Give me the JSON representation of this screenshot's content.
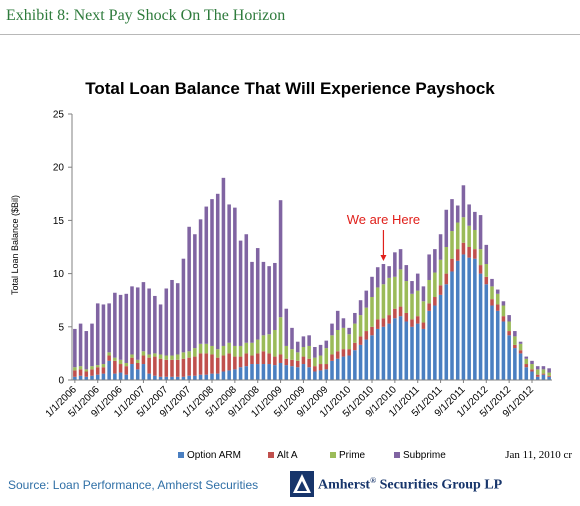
{
  "header": {
    "exhibit_label": "Exhibit 8:",
    "exhibit_title": "Next Pay Shock On The Horizon"
  },
  "footer": {
    "source": "Source:  Loan Performance, Amherst Securities",
    "firm_name": "Amherst",
    "firm_mark": "®",
    "firm_suffix": "Securities Group LP",
    "date_note": "Jan 11, 2010 cr"
  },
  "annotation": {
    "text": "We are Here",
    "color": "#e0201b"
  },
  "chart_data": {
    "type": "bar",
    "stacked": true,
    "title": "Total Loan Balance That Will Experience Payshock",
    "xlabel": "",
    "ylabel": "Total Loan Balance  ($Bil)",
    "ylim": [
      0,
      25
    ],
    "yticks": [
      0,
      5,
      10,
      15,
      20,
      25
    ],
    "grid": false,
    "legend_position": "bottom",
    "categories": [
      "1/1/2006",
      "2/1/2006",
      "3/1/2006",
      "4/1/2006",
      "5/1/2006",
      "6/1/2006",
      "7/1/2006",
      "8/1/2006",
      "9/1/2006",
      "10/1/2006",
      "11/1/2006",
      "12/1/2006",
      "1/1/2007",
      "2/1/2007",
      "3/1/2007",
      "4/1/2007",
      "5/1/2007",
      "6/1/2007",
      "7/1/2007",
      "8/1/2007",
      "9/1/2007",
      "10/1/2007",
      "11/1/2007",
      "12/1/2007",
      "1/1/2008",
      "2/1/2008",
      "3/1/2008",
      "4/1/2008",
      "5/1/2008",
      "6/1/2008",
      "7/1/2008",
      "8/1/2008",
      "9/1/2008",
      "10/1/2008",
      "11/1/2008",
      "12/1/2008",
      "1/1/2009",
      "2/1/2009",
      "3/1/2009",
      "4/1/2009",
      "5/1/2009",
      "6/1/2009",
      "7/1/2009",
      "8/1/2009",
      "9/1/2009",
      "10/1/2009",
      "11/1/2009",
      "12/1/2009",
      "1/1/2010",
      "2/1/2010",
      "3/1/2010",
      "4/1/2010",
      "5/1/2010",
      "6/1/2010",
      "7/1/2010",
      "8/1/2010",
      "9/1/2010",
      "10/1/2010",
      "11/1/2010",
      "12/1/2010",
      "1/1/2011",
      "2/1/2011",
      "3/1/2011",
      "4/1/2011",
      "5/1/2011",
      "6/1/2011",
      "7/1/2011",
      "8/1/2011",
      "9/1/2011",
      "10/1/2011",
      "11/1/2011",
      "12/1/2011",
      "1/1/2012",
      "2/1/2012",
      "3/1/2012",
      "4/1/2012",
      "5/1/2012",
      "6/1/2012",
      "7/1/2012",
      "8/1/2012",
      "9/1/2012",
      "10/1/2012",
      "11/1/2012",
      "12/1/2012"
    ],
    "tick_labels": [
      "1/1/2006",
      "5/1/2006",
      "9/1/2006",
      "1/1/2007",
      "5/1/2007",
      "9/1/2007",
      "1/1/2008",
      "5/1/2008",
      "9/1/2008",
      "1/1/2009",
      "5/1/2009",
      "9/1/2009",
      "1/1/2010",
      "5/1/2010",
      "9/1/2010",
      "1/1/2011",
      "5/1/2011",
      "9/1/2011",
      "1/1/2012",
      "5/1/2012",
      "9/1/2012"
    ],
    "series": [
      {
        "name": "Option ARM",
        "color": "#4a7fc1",
        "values": [
          0.3,
          0.4,
          0.3,
          0.4,
          0.5,
          0.6,
          1.8,
          0.6,
          0.7,
          0.5,
          1.5,
          1.0,
          1.5,
          0.6,
          0.4,
          0.3,
          0.3,
          0.3,
          0.3,
          0.3,
          0.4,
          0.4,
          0.5,
          0.5,
          0.6,
          0.6,
          0.8,
          0.9,
          1.0,
          1.2,
          1.3,
          1.5,
          1.5,
          1.5,
          1.5,
          1.4,
          1.6,
          1.4,
          1.3,
          1.2,
          1.5,
          1.2,
          0.8,
          0.9,
          1.0,
          1.8,
          2.0,
          2.2,
          2.3,
          2.8,
          3.3,
          3.8,
          4.2,
          4.8,
          5.0,
          5.3,
          5.8,
          6.0,
          5.5,
          5.0,
          5.3,
          4.8,
          6.5,
          7.0,
          8.0,
          9.0,
          10.2,
          11.2,
          11.8,
          11.5,
          11.4,
          10.0,
          9.0,
          7.0,
          6.5,
          5.5,
          4.2,
          3.0,
          2.5,
          1.2,
          0.8,
          0.3,
          0.5,
          0.3
        ]
      },
      {
        "name": "Alt A",
        "color": "#c0504d",
        "values": [
          0.6,
          0.6,
          0.5,
          0.6,
          0.7,
          0.6,
          0.5,
          1.2,
          0.8,
          0.8,
          0.6,
          0.6,
          0.8,
          1.5,
          1.8,
          1.7,
          1.6,
          1.6,
          1.6,
          1.7,
          1.7,
          1.8,
          2.0,
          2.0,
          1.8,
          1.5,
          1.5,
          1.6,
          1.2,
          1.0,
          1.2,
          0.8,
          1.0,
          1.2,
          1.0,
          0.8,
          0.8,
          0.6,
          0.6,
          0.6,
          0.7,
          0.8,
          0.5,
          0.6,
          0.5,
          0.6,
          0.7,
          0.7,
          0.6,
          0.7,
          0.8,
          0.8,
          0.8,
          0.9,
          0.8,
          0.8,
          0.9,
          0.9,
          0.8,
          0.7,
          0.7,
          0.6,
          0.7,
          0.8,
          0.9,
          1.0,
          1.2,
          1.1,
          1.1,
          1.0,
          0.9,
          0.8,
          0.7,
          0.6,
          0.6,
          0.5,
          0.4,
          0.3,
          0.3,
          0.3,
          0.2,
          0.2,
          0.1,
          0.1
        ]
      },
      {
        "name": "Prime",
        "color": "#9bbb59",
        "values": [
          0.3,
          0.3,
          0.2,
          0.3,
          0.2,
          0.3,
          0.3,
          0.3,
          0.4,
          0.3,
          0.3,
          0.3,
          0.4,
          0.3,
          0.3,
          0.4,
          0.4,
          0.4,
          0.5,
          0.6,
          0.6,
          0.8,
          0.9,
          0.9,
          0.8,
          0.8,
          0.9,
          1.0,
          1.0,
          1.0,
          1.0,
          1.2,
          1.3,
          1.5,
          1.8,
          2.5,
          3.5,
          1.2,
          1.0,
          0.8,
          0.9,
          1.2,
          0.8,
          0.8,
          1.5,
          1.8,
          2.0,
          2.0,
          1.4,
          1.8,
          2.0,
          2.2,
          2.8,
          3.0,
          3.2,
          3.5,
          3.0,
          3.5,
          3.0,
          2.4,
          2.4,
          2.0,
          2.2,
          2.3,
          2.4,
          2.5,
          2.6,
          2.5,
          2.4,
          2.0,
          1.8,
          1.5,
          1.2,
          1.2,
          1.0,
          1.0,
          0.9,
          0.8,
          0.6,
          0.5,
          0.5,
          0.5,
          0.4,
          0.3
        ]
      },
      {
        "name": "Subprime",
        "color": "#8064a2",
        "values": [
          3.6,
          4.0,
          3.6,
          4.0,
          5.8,
          5.6,
          4.6,
          6.1,
          6.1,
          6.5,
          6.4,
          6.8,
          6.5,
          6.2,
          5.4,
          4.7,
          6.3,
          7.1,
          6.7,
          8.8,
          11.7,
          10.7,
          11.7,
          12.9,
          13.8,
          14.6,
          15.8,
          13.0,
          13.0,
          9.9,
          10.2,
          7.6,
          8.6,
          6.9,
          6.4,
          6.3,
          11.0,
          3.5,
          2.0,
          1.0,
          1.0,
          1.0,
          1.0,
          1.0,
          0.7,
          1.1,
          1.8,
          0.9,
          0.6,
          1.0,
          1.4,
          1.6,
          1.9,
          1.9,
          1.9,
          1.1,
          2.3,
          1.9,
          1.5,
          1.2,
          1.6,
          1.4,
          2.4,
          2.2,
          2.4,
          3.5,
          3.0,
          1.6,
          3.0,
          2.0,
          1.7,
          3.2,
          1.8,
          0.7,
          0.4,
          0.4,
          0.6,
          0.5,
          0.2,
          0.2,
          0.3,
          0.3,
          0.3,
          0.4
        ]
      }
    ],
    "annotation_category": "7/1/2010"
  }
}
